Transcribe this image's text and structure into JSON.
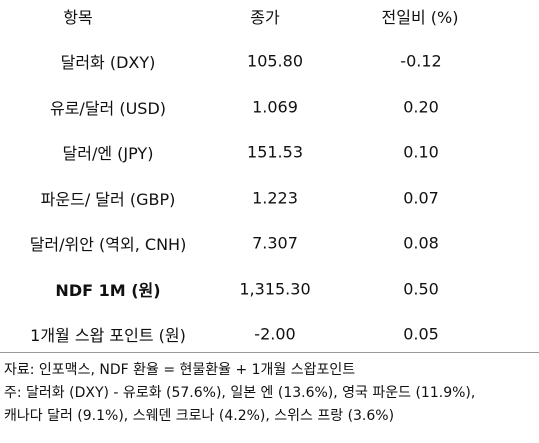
{
  "table": {
    "header": [
      "항목",
      "종가",
      "전일비 (%)"
    ],
    "rows": [
      [
        "달러화 (DXY)",
        "105.80",
        "-0.12"
      ],
      [
        "유로/달러 (USD)",
        "1.069",
        "0.20"
      ],
      [
        "달러/엔 (JPY)",
        "151.53",
        "0.10"
      ],
      [
        "파운드/ 달러 (GBP)",
        "1.223",
        "0.07"
      ],
      [
        "달러/위안 (역외, CNH)",
        "7.307",
        "0.08"
      ],
      [
        "NDF 1M (원)",
        "1,315.30",
        "0.50"
      ],
      [
        "1개월 스왑 포인트 (원)",
        "-2.00",
        "0.05"
      ]
    ]
  },
  "notes": [
    "자료: 인포맥스, NDF 환율 = 현물환율 + 1개월 스왑포인트",
    "주: 달러화 (DXY) - 유로화 (57.6%), 일본 엔 (13.6%), 영국 파운드 (11.9%),",
    "캐나다 달러 (9.1%), 스웨덴 크로나 (4.2%), 스위스 프랑 (3.6%)"
  ]
}
